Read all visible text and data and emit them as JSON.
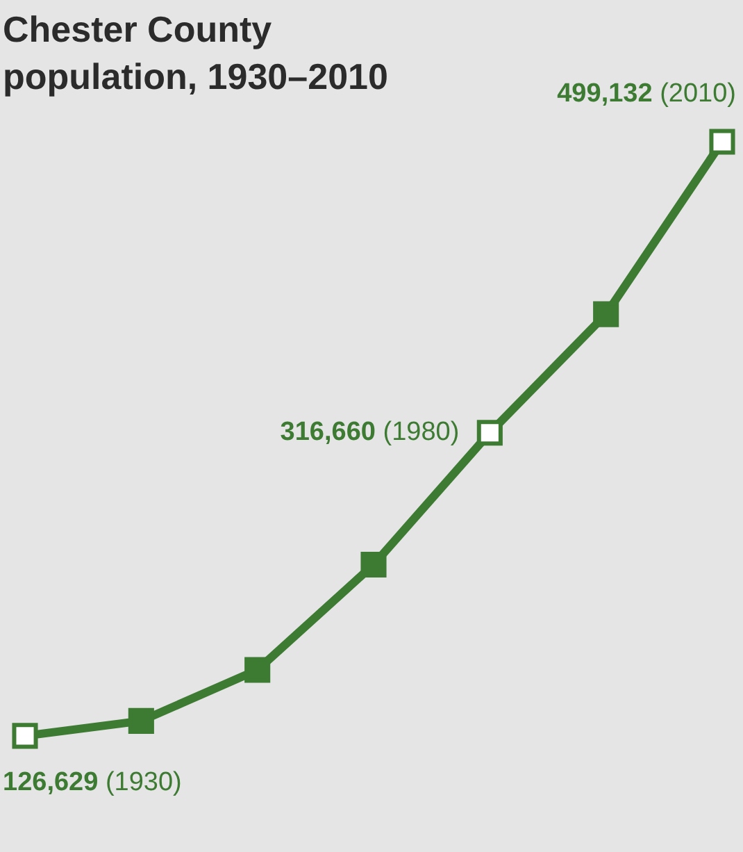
{
  "chart_data": {
    "type": "line",
    "title": "Chester County population, 1930–2010",
    "categories": [
      null,
      null,
      null,
      null,
      null,
      null,
      null
    ],
    "tick_labels": false,
    "marker": "square",
    "series": [
      {
        "color": "#3d7b33",
        "values": [
          126629,
          136000,
          168000,
          234000,
          316660,
          391000,
          499132
        ],
        "value_labels": [
          "126,629 (1930)",
          null,
          null,
          null,
          "316,660 (1980)",
          null,
          "499,132 (2010)"
        ]
      }
    ]
  }
}
